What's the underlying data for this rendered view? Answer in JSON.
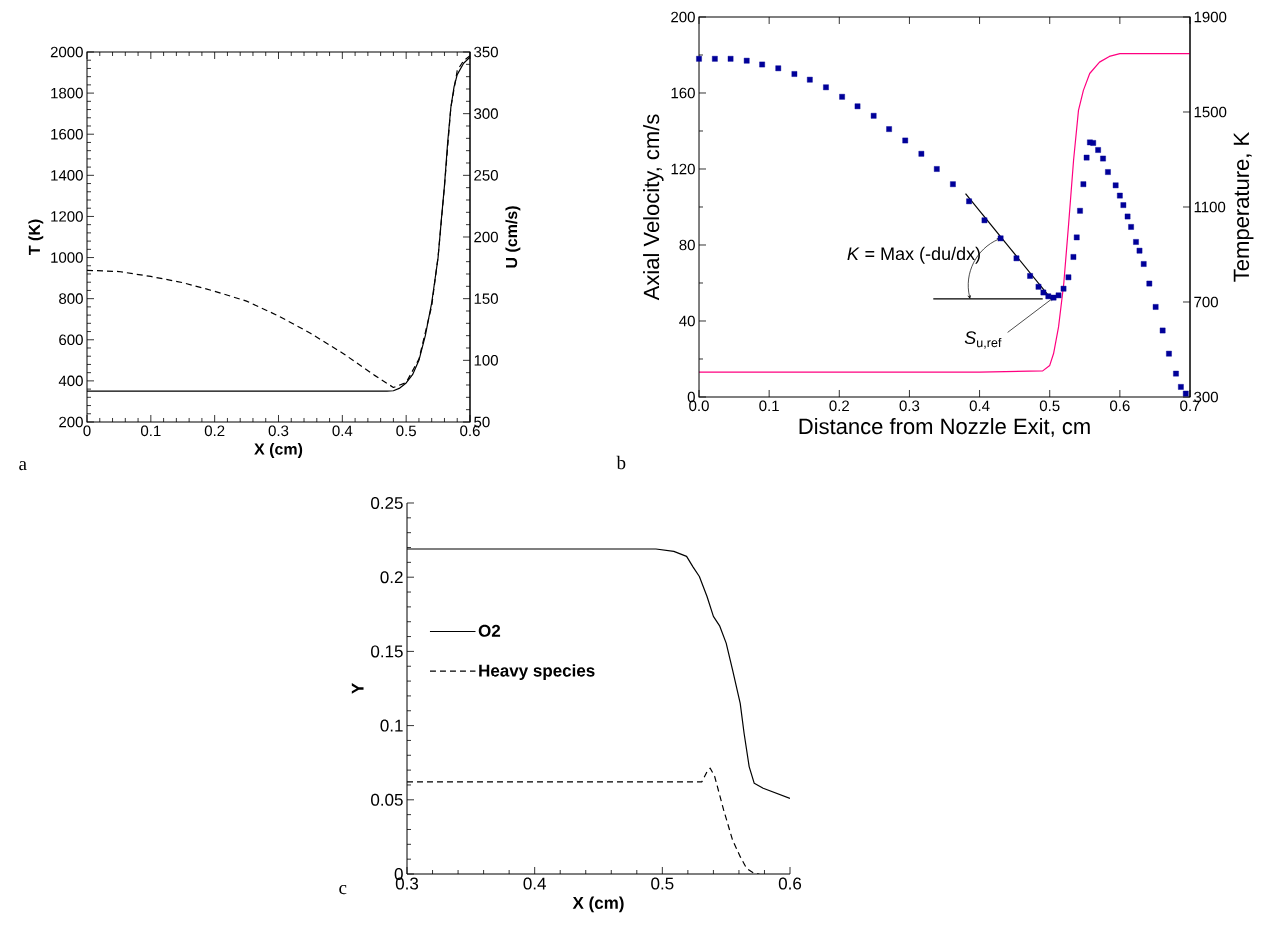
{
  "chart_data": [
    {
      "type": "line",
      "xlabel": "X (cm)",
      "ylabel": "T (K)",
      "y2label": "U (cm/s)",
      "xlim": [
        0,
        0.6
      ],
      "xticks": [
        0,
        0.1,
        0.2,
        0.3,
        0.4,
        0.5,
        0.6
      ],
      "ylim": [
        200,
        2000
      ],
      "yticks": [
        200,
        400,
        600,
        800,
        1000,
        1200,
        1400,
        1600,
        1800,
        2000
      ],
      "y2lim": [
        50,
        350
      ],
      "y2ticks": [
        50,
        100,
        150,
        200,
        250,
        300,
        350
      ],
      "annotations": [
        "a"
      ],
      "series": [
        {
          "color": "#000000",
          "line_style": "solid",
          "x": [
            0,
            0.1,
            0.2,
            0.3,
            0.4,
            0.45,
            0.47,
            0.48,
            0.49,
            0.5,
            0.51,
            0.52,
            0.53,
            0.54,
            0.55,
            0.555,
            0.56,
            0.565,
            0.57,
            0.575,
            0.58,
            0.59,
            0.6
          ],
          "values": [
            350,
            350,
            350,
            350,
            350,
            350,
            350,
            352,
            365,
            390,
            430,
            500,
            620,
            780,
            1000,
            1180,
            1350,
            1560,
            1730,
            1830,
            1890,
            1945,
            1975
          ]
        },
        {
          "color": "#000000",
          "line_style": "dashed",
          "axis": "y2",
          "x": [
            0,
            0.05,
            0.1,
            0.15,
            0.2,
            0.25,
            0.3,
            0.35,
            0.4,
            0.45,
            0.48,
            0.5,
            0.52,
            0.54,
            0.55,
            0.56,
            0.57,
            0.58,
            0.59,
            0.6
          ],
          "values": [
            173,
            172,
            168,
            163,
            156,
            148,
            136,
            122,
            106,
            88,
            78,
            82,
            101,
            144,
            184,
            241,
            305,
            335,
            343,
            347
          ]
        }
      ]
    },
    {
      "type": "line",
      "xlabel": "Distance from Nozzle Exit, cm",
      "ylabel": "Axial Velocity, cm/s",
      "y2label": "Temperature, K",
      "xlim": [
        0,
        0.7
      ],
      "xticks": [
        {
          "value": 0,
          "label": "0.0"
        },
        0.1,
        0.2,
        0.3,
        0.4,
        0.5,
        0.6,
        0.7
      ],
      "ylim": [
        0,
        200
      ],
      "yticks": [
        0,
        40,
        80,
        120,
        160,
        200
      ],
      "y2lim": [
        300,
        1900
      ],
      "y2ticks": [
        300,
        700,
        1100,
        1500,
        1900
      ],
      "annotations": [
        "b",
        {
          "text": "*K* = Max (-du/dx)",
          "x": 0.43,
          "y": 83.5
        },
        {
          "text": "*S*$_{u,ref}$",
          "x": 0.5055,
          "y": 52.3
        }
      ],
      "series": [
        {
          "type": "scatter",
          "marker": "square",
          "color": "#000099",
          "x": [
            0,
            0.0226,
            0.045,
            0.068,
            0.09,
            0.113,
            0.136,
            0.158,
            0.181,
            0.204,
            0.226,
            0.249,
            0.271,
            0.294,
            0.317,
            0.339,
            0.362,
            0.385,
            0.407,
            0.43,
            0.4526,
            0.472,
            0.484,
            0.491,
            0.498,
            0.5055,
            0.5126,
            0.5197,
            0.5267,
            0.5338,
            0.5385,
            0.5432,
            0.548,
            0.5526,
            0.5573,
            0.562,
            0.569,
            0.576,
            0.583,
            0.594,
            0.6,
            0.605,
            0.611,
            0.616,
            0.623,
            0.628,
            0.634,
            0.642,
            0.651,
            0.661,
            0.67,
            0.68,
            0.687,
            0.694
          ],
          "values": [
            178,
            178,
            178,
            177,
            175,
            173,
            170,
            167,
            163,
            158,
            153,
            148,
            141,
            135,
            128,
            120,
            112,
            103,
            93,
            83.5,
            73,
            63.7,
            58,
            55,
            53,
            52.3,
            53.5,
            57,
            63,
            73.7,
            84,
            98,
            112,
            126,
            134,
            133.7,
            130,
            125.5,
            118.4,
            111.4,
            106,
            101,
            95,
            89.5,
            81.6,
            77,
            70,
            59.7,
            47.4,
            35,
            22.8,
            12.3,
            5.3,
            1.8
          ]
        },
        {
          "type": "line",
          "axis": "y2",
          "color": "#ff0080",
          "x": [
            0,
            0.1,
            0.2,
            0.3,
            0.4,
            0.49,
            0.5,
            0.5055,
            0.5126,
            0.52,
            0.527,
            0.534,
            0.541,
            0.548,
            0.557,
            0.571,
            0.585,
            0.6,
            0.7
          ],
          "values": [
            405,
            405,
            405,
            405,
            405,
            410,
            433,
            483,
            595,
            777,
            1030,
            1297,
            1507,
            1591,
            1662,
            1710,
            1734,
            1746,
            1746
          ]
        },
        {
          "type": "line",
          "color": "#000000",
          "x": [
            0.38,
            0.503
          ],
          "values": [
            107,
            51.3
          ]
        },
        {
          "type": "line",
          "color": "#000000",
          "x": [
            0.334,
            0.49
          ],
          "values": [
            51.6,
            51.6
          ]
        }
      ]
    },
    {
      "type": "line",
      "xlabel": "X (cm)",
      "ylabel": "Y",
      "xlim": [
        0.3,
        0.6
      ],
      "xticks": [
        0.3,
        0.4,
        0.5,
        0.6
      ],
      "ylim": [
        0,
        0.25
      ],
      "yticks": [
        0,
        0.05,
        0.1,
        0.15,
        0.2,
        0.25
      ],
      "legend": "left",
      "annotations": [
        "c"
      ],
      "series": [
        {
          "name": "O2",
          "color": "#000000",
          "line_style": "solid",
          "x": [
            0.3,
            0.4,
            0.495,
            0.509,
            0.519,
            0.524,
            0.529,
            0.535,
            0.54,
            0.545,
            0.55,
            0.555,
            0.561,
            0.564,
            0.568,
            0.572,
            0.579,
            0.6
          ],
          "values": [
            0.219,
            0.219,
            0.219,
            0.2174,
            0.214,
            0.207,
            0.2005,
            0.187,
            0.1736,
            0.167,
            0.1556,
            0.1376,
            0.115,
            0.095,
            0.0724,
            0.0611,
            0.0578,
            0.051
          ]
        },
        {
          "name": "Heavy species",
          "color": "#000000",
          "line_style": "dashed",
          "x": [
            0.3,
            0.4,
            0.5,
            0.531,
            0.535,
            0.5375,
            0.541,
            0.548,
            0.555,
            0.561,
            0.566,
            0.572,
            0.576
          ],
          "values": [
            0.0621,
            0.0621,
            0.0621,
            0.0621,
            0.069,
            0.0713,
            0.0657,
            0.0432,
            0.0229,
            0.0117,
            0.0038,
            0.0004,
            0
          ]
        }
      ]
    }
  ]
}
